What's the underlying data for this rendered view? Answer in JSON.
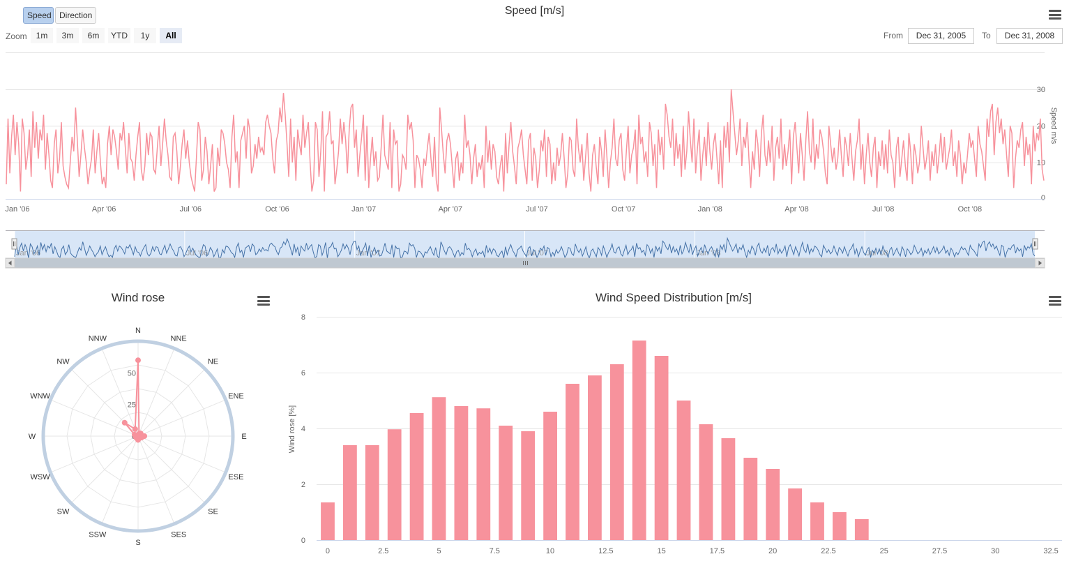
{
  "toolbar": {
    "speed_label": "Speed",
    "direction_label": "Direction",
    "zoom_label": "Zoom",
    "zoom_buttons": [
      "1m",
      "3m",
      "6m",
      "YTD",
      "1y",
      "All"
    ],
    "from_label": "From",
    "from_value": "Dec 31, 2005",
    "to_label": "To",
    "to_value": "Dec 31, 2008"
  },
  "colors": {
    "series": "#f7929c",
    "navigator_line": "#4572a7",
    "navigator_fill": "#d8e6f7",
    "rose_frame": "#c0d0e2"
  },
  "chart_data": [
    {
      "type": "line",
      "title": "Speed [m/s]",
      "ylabel": "Speed m/s",
      "ylim": [
        0,
        30
      ],
      "y_ticks": [
        "0",
        "10",
        "20",
        "30"
      ],
      "x_ticks": [
        "Jan '06",
        "Apr '06",
        "Jul '06",
        "Oct '06",
        "Jan '07",
        "Apr '07",
        "Jul '07",
        "Oct '07",
        "Jan '08",
        "Apr '08",
        "Jul '08",
        "Oct '08"
      ],
      "x_range": [
        "2005-12-31",
        "2008-12-31"
      ],
      "series": [
        {
          "values": [
            4,
            22,
            7,
            17,
            23,
            12,
            21,
            15,
            2,
            22,
            18,
            8,
            12,
            19,
            6,
            24,
            14,
            21,
            11,
            19,
            16,
            23,
            8,
            18,
            12,
            5,
            3,
            15,
            19,
            7,
            11,
            21,
            9,
            6,
            4,
            3,
            10,
            17,
            13,
            25,
            16,
            6,
            12,
            19,
            14,
            10,
            4,
            8,
            11,
            19,
            7,
            13,
            18,
            10,
            4,
            6,
            3,
            15,
            20,
            12,
            19,
            17,
            13,
            8,
            18,
            16,
            21,
            14,
            7,
            18,
            11,
            10,
            5,
            12,
            17,
            21,
            8,
            5,
            9,
            18,
            12,
            18,
            17,
            8,
            7,
            14,
            20,
            9,
            15,
            22,
            16,
            12,
            6,
            5,
            17,
            18,
            13,
            4,
            9,
            15,
            19,
            11,
            16,
            10,
            6,
            4,
            2,
            11,
            21,
            19,
            5,
            8,
            17,
            13,
            4,
            9,
            15,
            2,
            3,
            14,
            9,
            19,
            18,
            15,
            10,
            8,
            3,
            17,
            23,
            10,
            13,
            3,
            16,
            18,
            20,
            11,
            22,
            19,
            7,
            9,
            15,
            11,
            17,
            13,
            14,
            12,
            21,
            23,
            20,
            18,
            11,
            7,
            16,
            18,
            25,
            21,
            29,
            23,
            15,
            6,
            22,
            10,
            17,
            5,
            19,
            15,
            12,
            23,
            14,
            18,
            21,
            10,
            2,
            5,
            21,
            19,
            6,
            13,
            24,
            2,
            17,
            18,
            24,
            15,
            16,
            4,
            8,
            13,
            22,
            15,
            21,
            16,
            7,
            19,
            25,
            26,
            14,
            19,
            6,
            12,
            17,
            23,
            5,
            20,
            3,
            11,
            17,
            9,
            13,
            5,
            6,
            14,
            23,
            12,
            10,
            8,
            21,
            3,
            19,
            15,
            16,
            2,
            4,
            12,
            11,
            8,
            23,
            19,
            21,
            16,
            3,
            12,
            11,
            8,
            3,
            11,
            9,
            14,
            18,
            11,
            6,
            17,
            5,
            2,
            25,
            19,
            12,
            7,
            16,
            18,
            15,
            9,
            3,
            11,
            13,
            5,
            10,
            7,
            23,
            14,
            16,
            12,
            4,
            11,
            15,
            6,
            10,
            8,
            12,
            3,
            20,
            10,
            16,
            8,
            15,
            13,
            6,
            4,
            9,
            12,
            2,
            18,
            7,
            15,
            21,
            13,
            9,
            4,
            14,
            16,
            19,
            12,
            8,
            4,
            16,
            18,
            5,
            14,
            11,
            3,
            8,
            16,
            13,
            19,
            6,
            17,
            15,
            4,
            10,
            5,
            14,
            9,
            12,
            18,
            11,
            3,
            7,
            17,
            16,
            8,
            6,
            22,
            14,
            10,
            15,
            5,
            11,
            18,
            7,
            2,
            12,
            15,
            9,
            4,
            17,
            13,
            6,
            19,
            12,
            3,
            10,
            14,
            22,
            11,
            9,
            16,
            18,
            8,
            5,
            13,
            20,
            7,
            12,
            14,
            19,
            4,
            23,
            15,
            17,
            10,
            13,
            6,
            21,
            18,
            9,
            15,
            3,
            19,
            12,
            17,
            8,
            26,
            23,
            17,
            14,
            22,
            9,
            18,
            11,
            15,
            6,
            20,
            8,
            13,
            24,
            16,
            10,
            22,
            7,
            14,
            19,
            5,
            12,
            17,
            9,
            21,
            13,
            8,
            15,
            18,
            11,
            4,
            16,
            3,
            20,
            14,
            21,
            10,
            30,
            24,
            18,
            12,
            16,
            22,
            9,
            17,
            14,
            21,
            11,
            3,
            13,
            8,
            19,
            15,
            6,
            18,
            23,
            12,
            9,
            16,
            10,
            20,
            5,
            14,
            17,
            11,
            22,
            8,
            15,
            9,
            13,
            19,
            4,
            17,
            21,
            14,
            7,
            18,
            12,
            5,
            16,
            24,
            13,
            10,
            22,
            8,
            15,
            11,
            19,
            17,
            13,
            7,
            4,
            20,
            15,
            10,
            14,
            8,
            11,
            19,
            12,
            6,
            17,
            14,
            9,
            18,
            11,
            5,
            13,
            16,
            22,
            8,
            15,
            4,
            12,
            18,
            10,
            6,
            14,
            17,
            3,
            13,
            9,
            16,
            8,
            15,
            7,
            19,
            12,
            10,
            3,
            14,
            17,
            6,
            11,
            16,
            9,
            5,
            18,
            13,
            4,
            15,
            12,
            7,
            10,
            20,
            14,
            8,
            11,
            16,
            5,
            13,
            9,
            15,
            7,
            12,
            18,
            10,
            17,
            8,
            11,
            14,
            19,
            9,
            13,
            6,
            16,
            12,
            4,
            10,
            7,
            12,
            18,
            14,
            16,
            11,
            6,
            20,
            15,
            13,
            9,
            5,
            22,
            17,
            24,
            26,
            12,
            21,
            25,
            18,
            22,
            15,
            19,
            12,
            6,
            20,
            18,
            3,
            11,
            16,
            14,
            19,
            21,
            9,
            17,
            12,
            15,
            4,
            20,
            13,
            18,
            16,
            22,
            8,
            5
          ]
        }
      ]
    },
    {
      "type": "line",
      "title": "",
      "x_ticks": [
        "Jan '06",
        "Jul '06",
        "Jan '07",
        "Jul '07",
        "Jan '08",
        "Jul '08"
      ]
    },
    {
      "type": "line",
      "title": "Wind rose",
      "categories": [
        "N",
        "NNE",
        "NE",
        "ENE",
        "E",
        "ESE",
        "SE",
        "SES",
        "S",
        "SSW",
        "SW",
        "WSW",
        "W",
        "WNW",
        "NW",
        "NNW"
      ],
      "radial_ticks": [
        "0",
        "25",
        "50"
      ],
      "rmax": 75,
      "values": [
        60,
        2,
        3,
        2,
        5,
        3,
        2,
        2,
        3,
        2,
        1,
        2,
        1,
        3,
        15,
        6
      ]
    },
    {
      "type": "bar",
      "title": "Wind Speed Distribution [m/s]",
      "ylabel": "Wind rose [%]",
      "ylim": [
        0,
        8
      ],
      "y_ticks": [
        "0",
        "2",
        "4",
        "6",
        "8"
      ],
      "x_ticks": [
        "0",
        "2.5",
        "5",
        "7.5",
        "10",
        "12.5",
        "15",
        "17.5",
        "20",
        "22.5",
        "25",
        "27.5",
        "30",
        "32.5"
      ],
      "xlim": [
        -0.5,
        33
      ],
      "categories": [
        0,
        1,
        2,
        3,
        4,
        5,
        6,
        7,
        8,
        9,
        10,
        11,
        12,
        13,
        14,
        15,
        16,
        17,
        18,
        19,
        20,
        21,
        22,
        23,
        24
      ],
      "values": [
        1.35,
        3.4,
        3.4,
        3.97,
        4.55,
        5.12,
        4.8,
        4.72,
        4.1,
        3.9,
        4.6,
        5.6,
        5.9,
        6.3,
        7.15,
        6.6,
        5.0,
        4.15,
        3.65,
        2.95,
        2.55,
        1.85,
        1.35,
        1.0,
        0.75
      ]
    }
  ]
}
